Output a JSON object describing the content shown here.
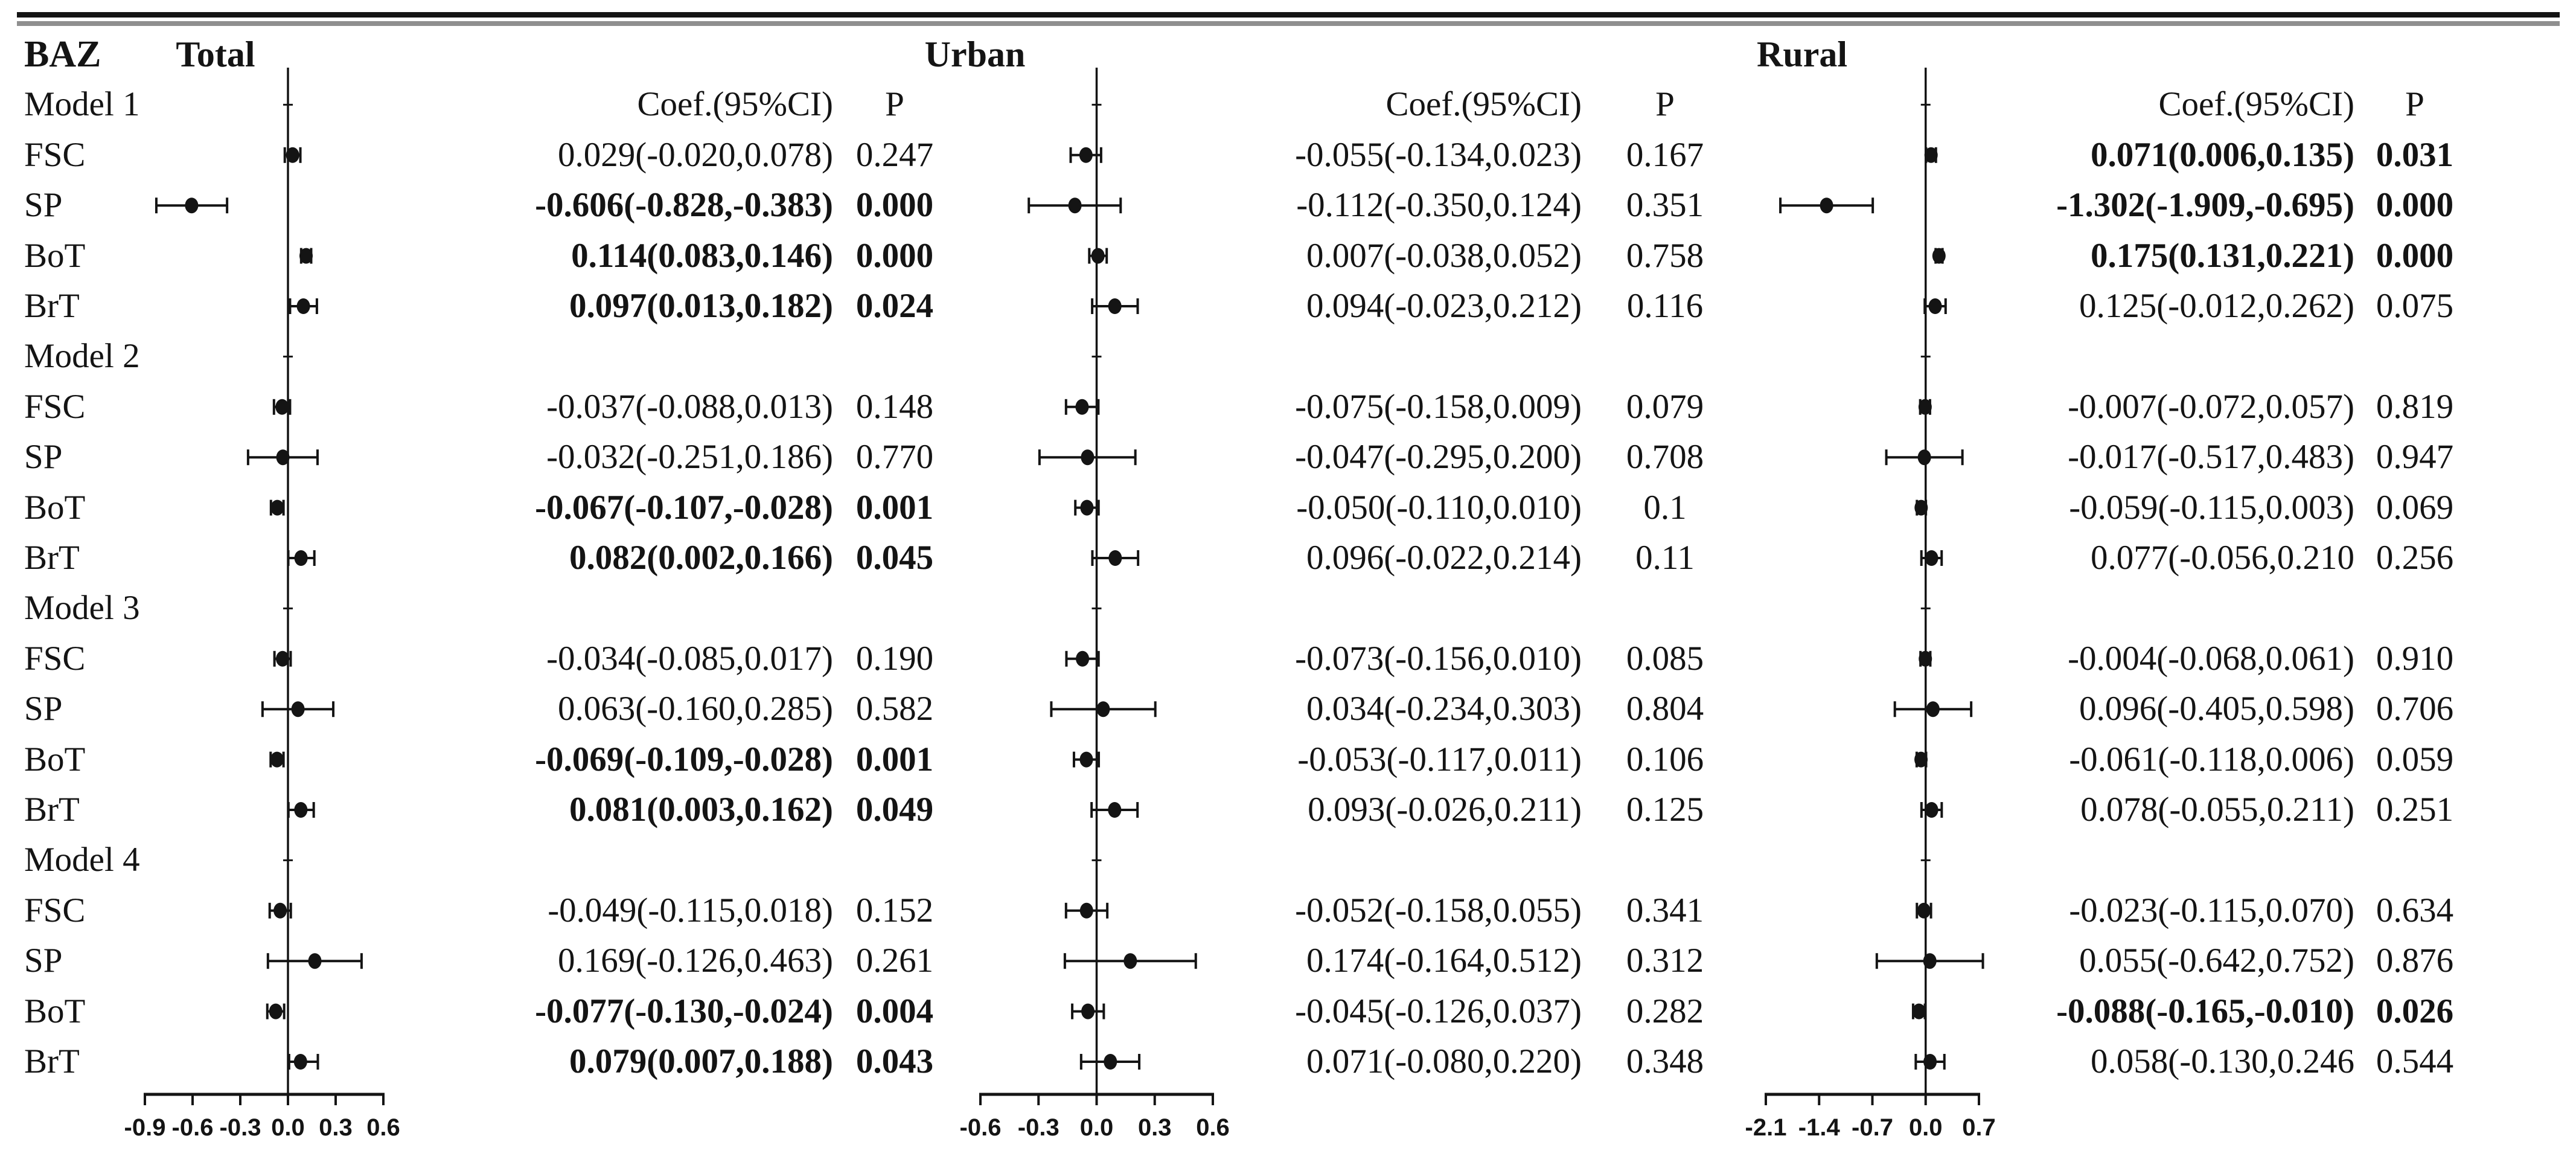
{
  "header": {
    "row_label_col": "BAZ",
    "coef_header": "Coef.(95%CI)",
    "p_header": "P"
  },
  "colors": {
    "ink": "#141414",
    "rule_gray": "#8f8f8f",
    "background": "#ffffff"
  },
  "chart_data": {
    "type": "forest",
    "title": "",
    "xlabel": "",
    "ylabel": "",
    "grid": false,
    "panels": [
      {
        "name": "Total",
        "xlim": [
          -0.9,
          0.6
        ],
        "tick_values": [
          -0.9,
          -0.6,
          -0.3,
          0.0,
          0.3,
          0.6
        ],
        "tick_labels": [
          "-0.9",
          "-0.6",
          "-0.3",
          "0.0",
          "0.3",
          "0.6"
        ],
        "zero_line": 0.0
      },
      {
        "name": "Urban",
        "xlim": [
          -0.6,
          0.6
        ],
        "tick_values": [
          -0.6,
          -0.3,
          0.0,
          0.3,
          0.6
        ],
        "tick_labels": [
          "-0.6",
          "-0.3",
          "0.0",
          "0.3",
          "0.6"
        ],
        "zero_line": 0.0
      },
      {
        "name": "Rural",
        "xlim": [
          -2.1,
          0.7
        ],
        "tick_values": [
          -2.1,
          -1.4,
          -0.7,
          0.0,
          0.7
        ],
        "tick_labels": [
          "-2.1",
          "-1.4",
          "-0.7",
          "0.0",
          "0.7"
        ],
        "zero_line": 0.0
      }
    ],
    "groups": [
      {
        "model": "Model 1",
        "rows": [
          {
            "label": "FSC",
            "total": {
              "coef": "0.029(-0.020,0.078)",
              "p": "0.247",
              "bold": false,
              "est": 0.029,
              "lo": -0.02,
              "hi": 0.078
            },
            "urban": {
              "coef": "-0.055(-0.134,0.023)",
              "p": "0.167",
              "bold": false,
              "est": -0.055,
              "lo": -0.134,
              "hi": 0.023
            },
            "rural": {
              "coef": "0.071(0.006,0.135)",
              "p": "0.031",
              "bold": true,
              "est": 0.071,
              "lo": 0.006,
              "hi": 0.135
            }
          },
          {
            "label": "SP",
            "total": {
              "coef": "-0.606(-0.828,-0.383)",
              "p": "0.000",
              "bold": true,
              "est": -0.606,
              "lo": -0.828,
              "hi": -0.383
            },
            "urban": {
              "coef": "-0.112(-0.350,0.124)",
              "p": "0.351",
              "bold": false,
              "est": -0.112,
              "lo": -0.35,
              "hi": 0.124
            },
            "rural": {
              "coef": "-1.302(-1.909,-0.695)",
              "p": "0.000",
              "bold": true,
              "est": -1.302,
              "lo": -1.909,
              "hi": -0.695
            }
          },
          {
            "label": "BoT",
            "total": {
              "coef": "0.114(0.083,0.146)",
              "p": "0.000",
              "bold": true,
              "est": 0.114,
              "lo": 0.083,
              "hi": 0.146
            },
            "urban": {
              "coef": "0.007(-0.038,0.052)",
              "p": "0.758",
              "bold": false,
              "est": 0.007,
              "lo": -0.038,
              "hi": 0.052
            },
            "rural": {
              "coef": "0.175(0.131,0.221)",
              "p": "0.000",
              "bold": true,
              "est": 0.175,
              "lo": 0.131,
              "hi": 0.221
            }
          },
          {
            "label": "BrT",
            "total": {
              "coef": "0.097(0.013,0.182)",
              "p": "0.024",
              "bold": true,
              "est": 0.097,
              "lo": 0.013,
              "hi": 0.182
            },
            "urban": {
              "coef": "0.094(-0.023,0.212)",
              "p": "0.116",
              "bold": false,
              "est": 0.094,
              "lo": -0.023,
              "hi": 0.212
            },
            "rural": {
              "coef": "0.125(-0.012,0.262)",
              "p": "0.075",
              "bold": false,
              "est": 0.125,
              "lo": -0.012,
              "hi": 0.262
            }
          }
        ]
      },
      {
        "model": "Model 2",
        "rows": [
          {
            "label": "FSC",
            "total": {
              "coef": "-0.037(-0.088,0.013)",
              "p": "0.148",
              "bold": false,
              "est": -0.037,
              "lo": -0.088,
              "hi": 0.013
            },
            "urban": {
              "coef": "-0.075(-0.158,0.009)",
              "p": "0.079",
              "bold": false,
              "est": -0.075,
              "lo": -0.158,
              "hi": 0.009
            },
            "rural": {
              "coef": "-0.007(-0.072,0.057)",
              "p": "0.819",
              "bold": false,
              "est": -0.007,
              "lo": -0.072,
              "hi": 0.057
            }
          },
          {
            "label": "SP",
            "total": {
              "coef": "-0.032(-0.251,0.186)",
              "p": "0.770",
              "bold": false,
              "est": -0.032,
              "lo": -0.251,
              "hi": 0.186
            },
            "urban": {
              "coef": "-0.047(-0.295,0.200)",
              "p": "0.708",
              "bold": false,
              "est": -0.047,
              "lo": -0.295,
              "hi": 0.2
            },
            "rural": {
              "coef": "-0.017(-0.517,0.483)",
              "p": "0.947",
              "bold": false,
              "est": -0.017,
              "lo": -0.517,
              "hi": 0.483
            }
          },
          {
            "label": "BoT",
            "total": {
              "coef": "-0.067(-0.107,-0.028)",
              "p": "0.001",
              "bold": true,
              "est": -0.067,
              "lo": -0.107,
              "hi": -0.028
            },
            "urban": {
              "coef": "-0.050(-0.110,0.010)",
              "p": "0.1",
              "bold": false,
              "est": -0.05,
              "lo": -0.11,
              "hi": 0.01
            },
            "rural": {
              "coef": "-0.059(-0.115,0.003)",
              "p": "0.069",
              "bold": false,
              "est": -0.059,
              "lo": -0.115,
              "hi": 0.003
            }
          },
          {
            "label": "BrT",
            "total": {
              "coef": "0.082(0.002,0.166)",
              "p": "0.045",
              "bold": true,
              "est": 0.082,
              "lo": 0.002,
              "hi": 0.166
            },
            "urban": {
              "coef": "0.096(-0.022,0.214)",
              "p": "0.11",
              "bold": false,
              "est": 0.096,
              "lo": -0.022,
              "hi": 0.214
            },
            "rural": {
              "coef": "0.077(-0.056,0.210",
              "p": "0.256",
              "bold": false,
              "est": 0.077,
              "lo": -0.056,
              "hi": 0.21
            }
          }
        ]
      },
      {
        "model": "Model 3",
        "rows": [
          {
            "label": "FSC",
            "total": {
              "coef": "-0.034(-0.085,0.017)",
              "p": "0.190",
              "bold": false,
              "est": -0.034,
              "lo": -0.085,
              "hi": 0.017
            },
            "urban": {
              "coef": "-0.073(-0.156,0.010)",
              "p": "0.085",
              "bold": false,
              "est": -0.073,
              "lo": -0.156,
              "hi": 0.01
            },
            "rural": {
              "coef": "-0.004(-0.068,0.061)",
              "p": "0.910",
              "bold": false,
              "est": -0.004,
              "lo": -0.068,
              "hi": 0.061
            }
          },
          {
            "label": "SP",
            "total": {
              "coef": "0.063(-0.160,0.285)",
              "p": "0.582",
              "bold": false,
              "est": 0.063,
              "lo": -0.16,
              "hi": 0.285
            },
            "urban": {
              "coef": "0.034(-0.234,0.303)",
              "p": "0.804",
              "bold": false,
              "est": 0.034,
              "lo": -0.234,
              "hi": 0.303
            },
            "rural": {
              "coef": "0.096(-0.405,0.598)",
              "p": "0.706",
              "bold": false,
              "est": 0.096,
              "lo": -0.405,
              "hi": 0.598
            }
          },
          {
            "label": "BoT",
            "total": {
              "coef": "-0.069(-0.109,-0.028)",
              "p": "0.001",
              "bold": true,
              "est": -0.069,
              "lo": -0.109,
              "hi": -0.028
            },
            "urban": {
              "coef": "-0.053(-0.117,0.011)",
              "p": "0.106",
              "bold": false,
              "est": -0.053,
              "lo": -0.117,
              "hi": 0.011
            },
            "rural": {
              "coef": "-0.061(-0.118,0.006)",
              "p": "0.059",
              "bold": false,
              "est": -0.061,
              "lo": -0.118,
              "hi": 0.006
            }
          },
          {
            "label": "BrT",
            "total": {
              "coef": "0.081(0.003,0.162)",
              "p": "0.049",
              "bold": true,
              "est": 0.081,
              "lo": 0.003,
              "hi": 0.162
            },
            "urban": {
              "coef": "0.093(-0.026,0.211)",
              "p": "0.125",
              "bold": false,
              "est": 0.093,
              "lo": -0.026,
              "hi": 0.211
            },
            "rural": {
              "coef": "0.078(-0.055,0.211)",
              "p": "0.251",
              "bold": false,
              "est": 0.078,
              "lo": -0.055,
              "hi": 0.211
            }
          }
        ]
      },
      {
        "model": "Model 4",
        "rows": [
          {
            "label": "FSC",
            "total": {
              "coef": "-0.049(-0.115,0.018)",
              "p": "0.152",
              "bold": false,
              "est": -0.049,
              "lo": -0.115,
              "hi": 0.018
            },
            "urban": {
              "coef": "-0.052(-0.158,0.055)",
              "p": "0.341",
              "bold": false,
              "est": -0.052,
              "lo": -0.158,
              "hi": 0.055
            },
            "rural": {
              "coef": "-0.023(-0.115,0.070)",
              "p": "0.634",
              "bold": false,
              "est": -0.023,
              "lo": -0.115,
              "hi": 0.07
            }
          },
          {
            "label": "SP",
            "total": {
              "coef": "0.169(-0.126,0.463)",
              "p": "0.261",
              "bold": false,
              "est": 0.169,
              "lo": -0.126,
              "hi": 0.463
            },
            "urban": {
              "coef": "0.174(-0.164,0.512)",
              "p": "0.312",
              "bold": false,
              "est": 0.174,
              "lo": -0.164,
              "hi": 0.512
            },
            "rural": {
              "coef": "0.055(-0.642,0.752)",
              "p": "0.876",
              "bold": false,
              "est": 0.055,
              "lo": -0.642,
              "hi": 0.752
            }
          },
          {
            "label": "BoT",
            "total": {
              "coef": "-0.077(-0.130,-0.024)",
              "p": "0.004",
              "bold": true,
              "est": -0.077,
              "lo": -0.13,
              "hi": -0.024
            },
            "urban": {
              "coef": "-0.045(-0.126,0.037)",
              "p": "0.282",
              "bold": false,
              "est": -0.045,
              "lo": -0.126,
              "hi": 0.037
            },
            "rural": {
              "coef": "-0.088(-0.165,-0.010)",
              "p": "0.026",
              "bold": true,
              "est": -0.088,
              "lo": -0.165,
              "hi": -0.01
            }
          },
          {
            "label": "BrT",
            "total": {
              "coef": "0.079(0.007,0.188)",
              "p": "0.043",
              "bold": true,
              "est": 0.079,
              "lo": 0.007,
              "hi": 0.188
            },
            "urban": {
              "coef": "0.071(-0.080,0.220)",
              "p": "0.348",
              "bold": false,
              "est": 0.071,
              "lo": -0.08,
              "hi": 0.22
            },
            "rural": {
              "coef": "0.058(-0.130,0.246",
              "p": "0.544",
              "bold": false,
              "est": 0.058,
              "lo": -0.13,
              "hi": 0.246
            }
          }
        ]
      }
    ]
  }
}
